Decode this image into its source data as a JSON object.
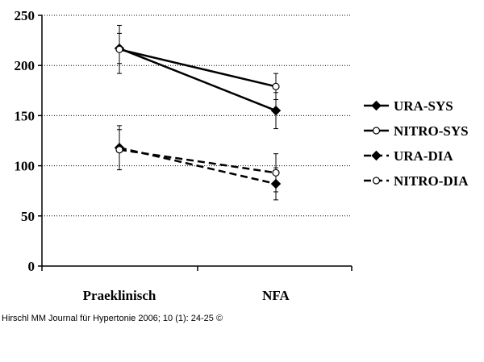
{
  "chart_data": {
    "type": "line",
    "categories": [
      "Praeklinisch",
      "NFA"
    ],
    "ylim": [
      0,
      250
    ],
    "yticks": [
      0,
      50,
      100,
      150,
      200,
      250
    ],
    "grid": true,
    "legend_position": "right",
    "series": [
      {
        "name": "URA-SYS",
        "values": [
          217,
          155
        ],
        "error": [
          15,
          18
        ],
        "marker": "diamond",
        "dash": false,
        "marker_fill": "#000000"
      },
      {
        "name": "NITRO-SYS",
        "values": [
          216,
          179
        ],
        "error": [
          24,
          13
        ],
        "marker": "circle",
        "dash": false,
        "marker_fill": "#ffffff"
      },
      {
        "name": "URA-DIA",
        "values": [
          118,
          82
        ],
        "error": [
          22,
          16
        ],
        "marker": "diamond",
        "dash": true,
        "marker_fill": "#000000"
      },
      {
        "name": "NITRO-DIA",
        "values": [
          116,
          93
        ],
        "error": [
          20,
          19
        ],
        "marker": "circle",
        "dash": true,
        "marker_fill": "#ffffff"
      }
    ]
  },
  "source_text": "Hirschl MM Journal für Hypertonie 2006; 10 (1): 24-25 ©"
}
